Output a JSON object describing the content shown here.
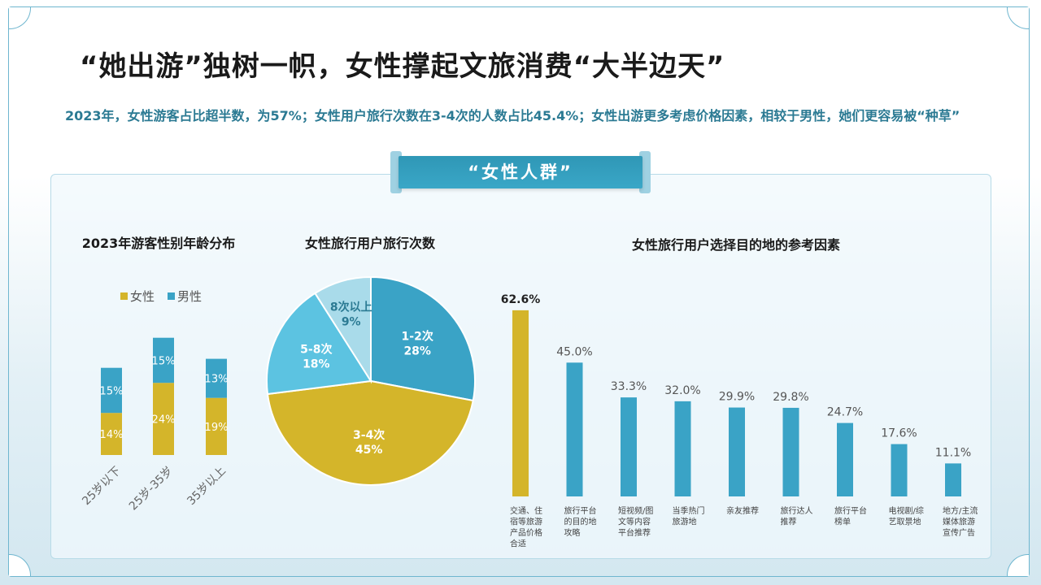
{
  "page": {
    "title": "“她出游”独树一帜，女性撑起文旅消费“大半边天”",
    "subtitle": "2023年，女性游客占比超半数，为57%；女性用户旅行次数在3-4次的人数占比45.4%；女性出游更多考虑价格因素，相较于男性，她们更容易被“种草”",
    "tag": "“女性人群”"
  },
  "colors": {
    "female": "#d4b52a",
    "male": "#3aa3c6",
    "pie_dark": "#3aa3c6",
    "pie_mid": "#5cc3e1",
    "pie_light": "#a9dbea",
    "accent": "#2b7a93"
  },
  "chart_data": [
    {
      "type": "bar",
      "stacked": true,
      "title": "2023年游客性别年龄分布",
      "categories": [
        "25岁以下",
        "25岁-35岁",
        "35岁以上"
      ],
      "series": [
        {
          "name": "女性",
          "values": [
            14,
            24,
            19
          ],
          "labels": [
            "14%",
            "24%",
            "19%"
          ]
        },
        {
          "name": "男性",
          "values": [
            15,
            15,
            13
          ],
          "labels": [
            "15%",
            "15%",
            "13%"
          ]
        }
      ],
      "legend": "top"
    },
    {
      "type": "pie",
      "title": "女性旅行用户旅行次数",
      "slices": [
        {
          "label": "1-2次",
          "value": 28,
          "pct": "28%"
        },
        {
          "label": "3-4次",
          "value": 45,
          "pct": "45%"
        },
        {
          "label": "5-8次",
          "value": 18,
          "pct": "18%"
        },
        {
          "label": "8次以上",
          "value": 9,
          "pct": "9%"
        }
      ]
    },
    {
      "type": "bar",
      "title": "女性旅行用户选择目的地的参考因素",
      "categories": [
        "交通、住宿等旅游产品价格合适",
        "旅行平台的目的地攻略",
        "短视频/图文等内容平台推荐",
        "当季热门旅游地",
        "亲友推荐",
        "旅行达人推荐",
        "旅行平台榜单",
        "电视剧/综艺取景地",
        "地方/主流媒体旅游宣传广告"
      ],
      "category_lines": [
        [
          "交通、住",
          "宿等旅游",
          "产品价格",
          "合适"
        ],
        [
          "旅行平台",
          "的目的地",
          "攻略"
        ],
        [
          "短视频/图",
          "文等内容",
          "平台推荐"
        ],
        [
          "当季热门",
          "旅游地"
        ],
        [
          "亲友推荐"
        ],
        [
          "旅行达人",
          "推荐"
        ],
        [
          "旅行平台",
          "榜单"
        ],
        [
          "电视剧/综",
          "艺取景地"
        ],
        [
          "地方/主流",
          "媒体旅游",
          "宣传广告"
        ]
      ],
      "values": [
        62.6,
        45.0,
        33.3,
        32.0,
        29.9,
        29.8,
        24.7,
        17.6,
        11.1
      ],
      "labels": [
        "62.6%",
        "45.0%",
        "33.3%",
        "32.0%",
        "29.9%",
        "29.8%",
        "24.7%",
        "17.6%",
        "11.1%"
      ]
    }
  ]
}
